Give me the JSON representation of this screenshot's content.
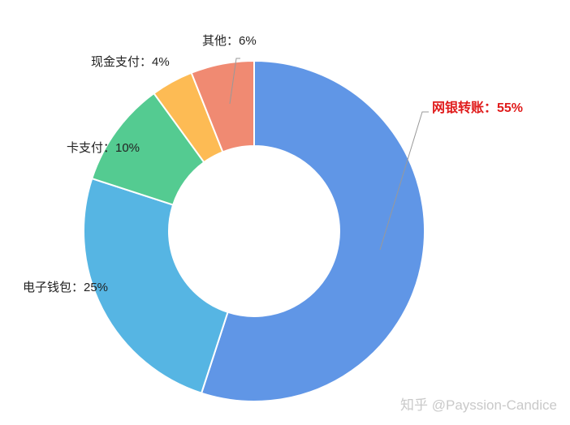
{
  "chart_data": {
    "type": "pie",
    "variant": "donut",
    "series": [
      {
        "name": "网银转账",
        "value": 55,
        "color": "#6096e6",
        "label": "网银转账：55%",
        "highlight": true
      },
      {
        "name": "电子钱包",
        "value": 25,
        "color": "#56b5e3",
        "label": "电子钱包：25%"
      },
      {
        "name": "卡支付",
        "value": 10,
        "color": "#54cb91",
        "label": "卡支付：10%"
      },
      {
        "name": "现金支付",
        "value": 4,
        "color": "#fdbb54",
        "label": "现金支付：4%"
      },
      {
        "name": "其他",
        "value": 6,
        "color": "#f08a72",
        "label": "其他：6%"
      }
    ],
    "unit": "%",
    "start": "top",
    "direction": "clockwise",
    "legend": "none"
  },
  "watermark": "知乎 @Payssion-Candice"
}
